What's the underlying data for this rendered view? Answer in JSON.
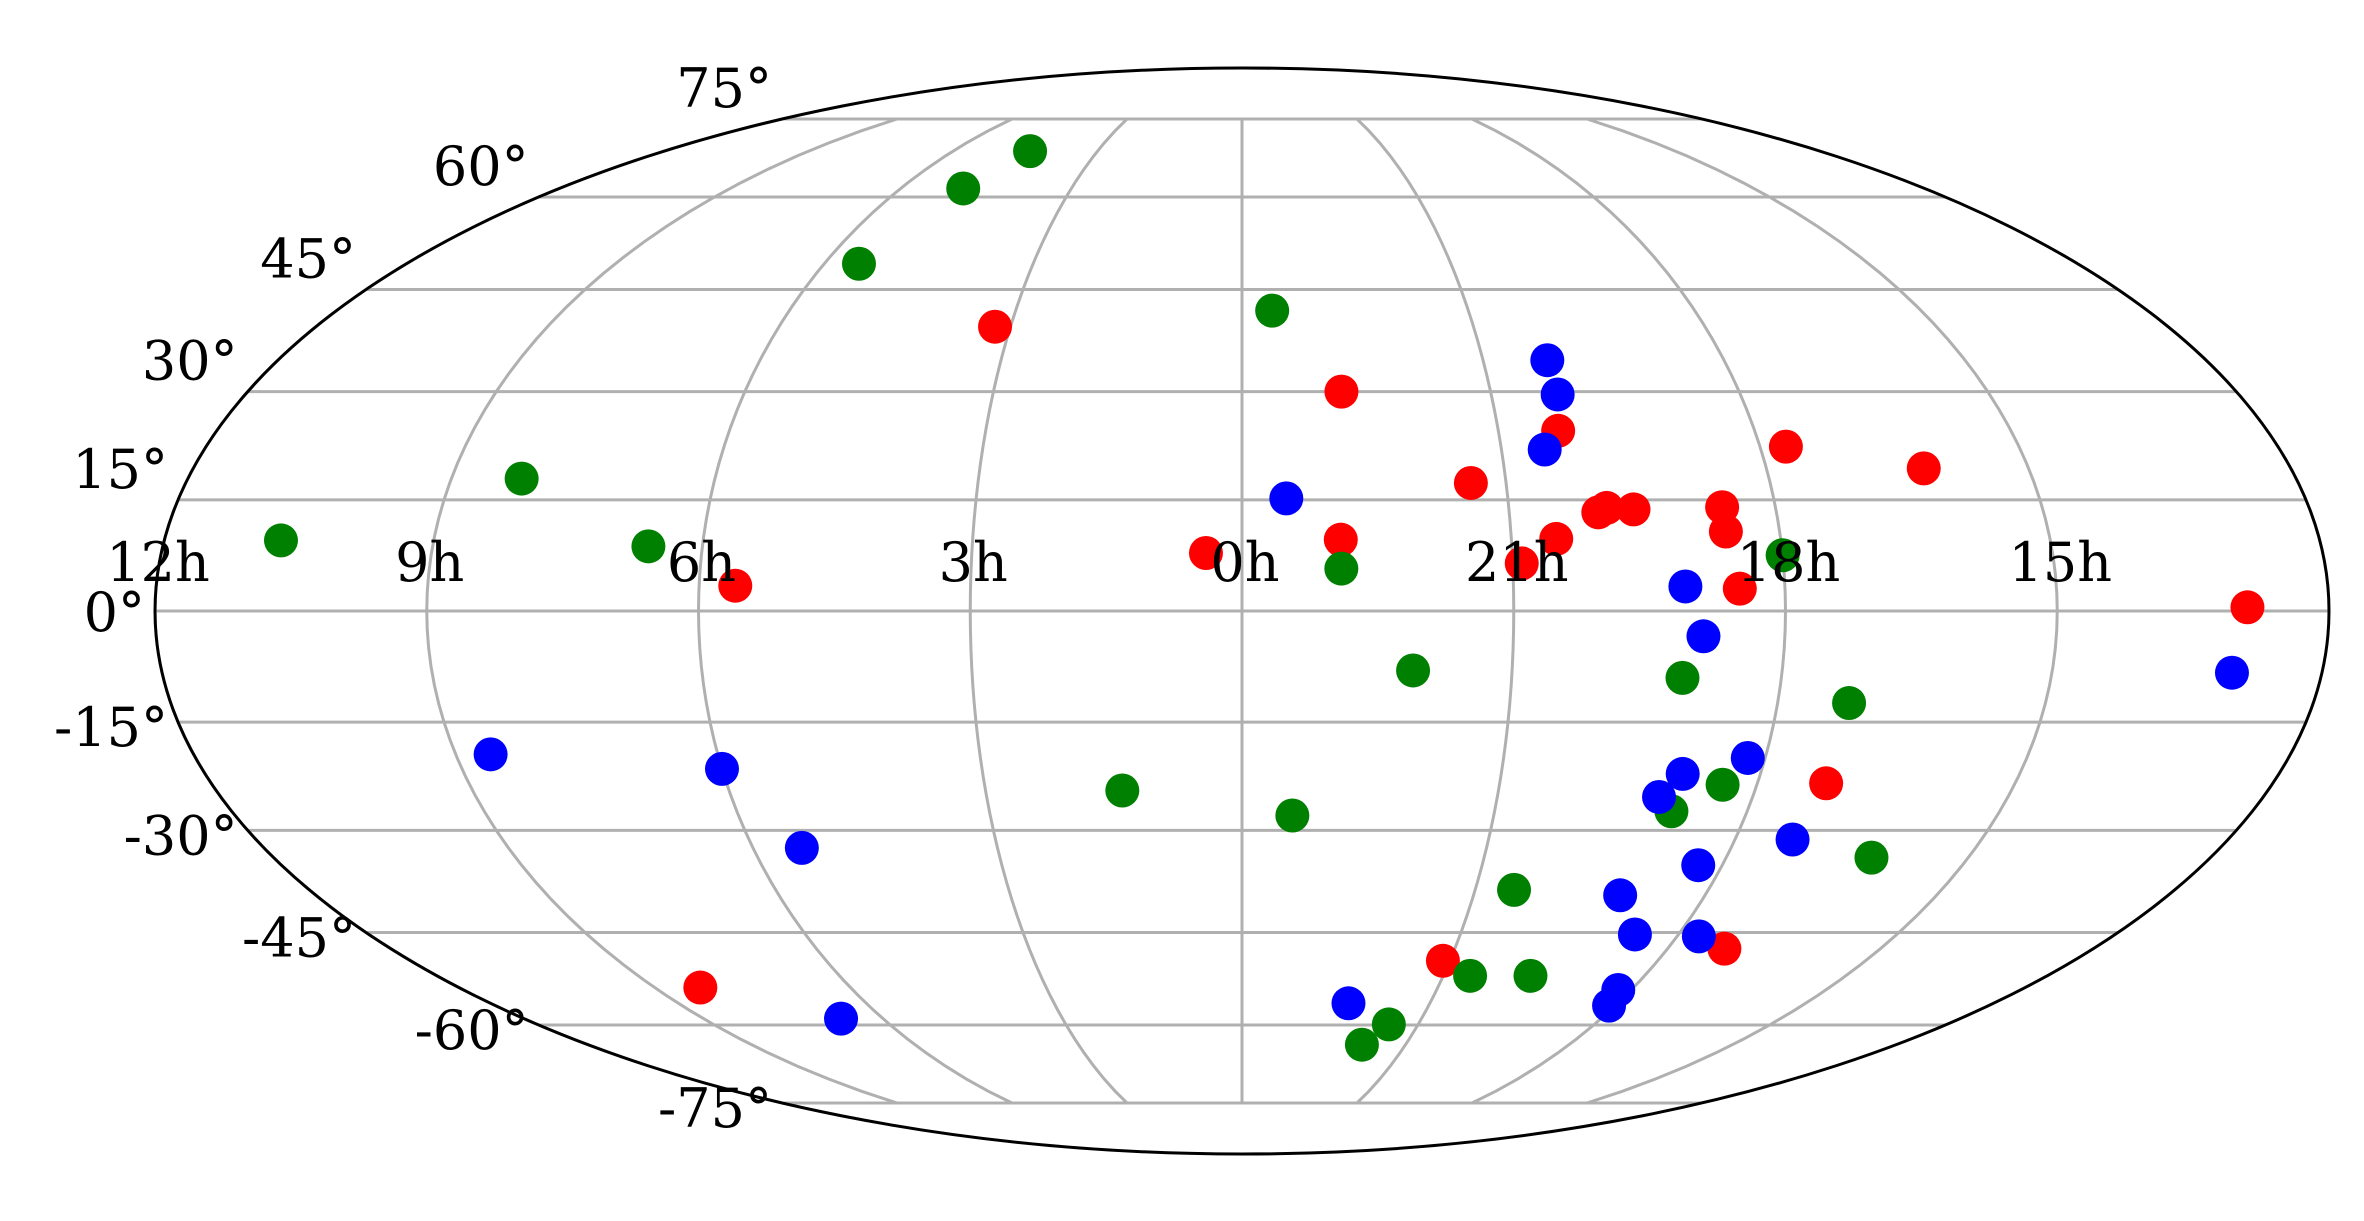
{
  "chart_data": {
    "type": "scatter",
    "projection": "mollweide",
    "title": "",
    "xlabel": "",
    "ylabel": "",
    "x_unit": "hours of right ascension",
    "y_unit": "degrees of declination",
    "xlim": [
      0,
      24
    ],
    "ylim": [
      -90,
      90
    ],
    "x_direction": "right ascension increases to the left; 0h at center",
    "grid": true,
    "legend": "none",
    "x_tick_values": [
      12,
      9,
      6,
      3,
      0,
      21,
      18,
      15
    ],
    "x_tick_labels": [
      "12h",
      "9h",
      "6h",
      "3h",
      "0h",
      "21h",
      "18h",
      "15h"
    ],
    "y_tick_values": [
      75,
      60,
      45,
      30,
      15,
      0,
      -15,
      -30,
      -45,
      -60,
      -75
    ],
    "y_tick_labels": [
      "75°",
      "60°",
      "45°",
      "30°",
      "15°",
      "0°",
      "-15°",
      "-30°",
      "-45°",
      "-60°",
      "-75°"
    ],
    "series": [
      {
        "color": "#ff0000",
        "points": [
          [
            0.4,
            7.8
          ],
          [
            5.6,
            3.4
          ],
          [
            3.2,
            39.4
          ],
          [
            22.8,
            30.0
          ],
          [
            21.4,
            17.3
          ],
          [
            20.3,
            24.5
          ],
          [
            20.5,
            9.7
          ],
          [
            20.9,
            6.4
          ],
          [
            19.9,
            13.9
          ],
          [
            20.0,
            13.3
          ],
          [
            19.6,
            13.7
          ],
          [
            18.6,
            14.0
          ],
          [
            18.6,
            10.7
          ],
          [
            18.5,
            3.0
          ],
          [
            17.7,
            22.3
          ],
          [
            16.2,
            19.3
          ],
          [
            12.9,
            0.5
          ],
          [
            22.9,
            9.6
          ],
          [
            17.2,
            -23.4
          ],
          [
            17.2,
            -47.5
          ],
          [
            8.3,
            -53.7
          ],
          [
            21.1,
            -49.4
          ]
        ]
      },
      {
        "color": "#008000",
        "points": [
          [
            10.7,
            9.5
          ],
          [
            8.2,
            17.9
          ],
          [
            6.6,
            8.7
          ],
          [
            4.4,
            68.4
          ],
          [
            4.9,
            61.5
          ],
          [
            5.5,
            49.0
          ],
          [
            23.6,
            41.8
          ],
          [
            22.9,
            5.7
          ],
          [
            22.1,
            -8.0
          ],
          [
            19.1,
            -9.0
          ],
          [
            18.0,
            7.5
          ],
          [
            17.2,
            -12.4
          ],
          [
            16.2,
            -33.9
          ],
          [
            18.4,
            -23.6
          ],
          [
            18.9,
            -27.3
          ],
          [
            1.4,
            -24.4
          ],
          [
            23.4,
            -27.9
          ],
          [
            20.5,
            -38.6
          ],
          [
            20.6,
            -51.8
          ],
          [
            19.7,
            -51.8
          ],
          [
            21.5,
            -59.9
          ],
          [
            21.8,
            -63.5
          ]
        ]
      },
      {
        "color": "#0000ff",
        "points": [
          [
            20.2,
            34.5
          ],
          [
            20.2,
            29.6
          ],
          [
            20.5,
            21.9
          ],
          [
            23.5,
            15.2
          ],
          [
            19.1,
            3.3
          ],
          [
            18.9,
            -3.4
          ],
          [
            13.0,
            -8.3
          ],
          [
            8.6,
            -19.4
          ],
          [
            6.0,
            -21.4
          ],
          [
            5.4,
            -32.5
          ],
          [
            18.2,
            -19.9
          ],
          [
            18.9,
            -22.1
          ],
          [
            19.1,
            -25.3
          ],
          [
            17.3,
            -31.3
          ],
          [
            18.3,
            -35.0
          ],
          [
            19.1,
            -39.4
          ],
          [
            18.6,
            -45.3
          ],
          [
            17.7,
            -45.6
          ],
          [
            18.2,
            -54.1
          ],
          [
            18.1,
            -56.7
          ],
          [
            22.3,
            -56.3
          ],
          [
            6.7,
            -58.9
          ]
        ]
      }
    ]
  }
}
